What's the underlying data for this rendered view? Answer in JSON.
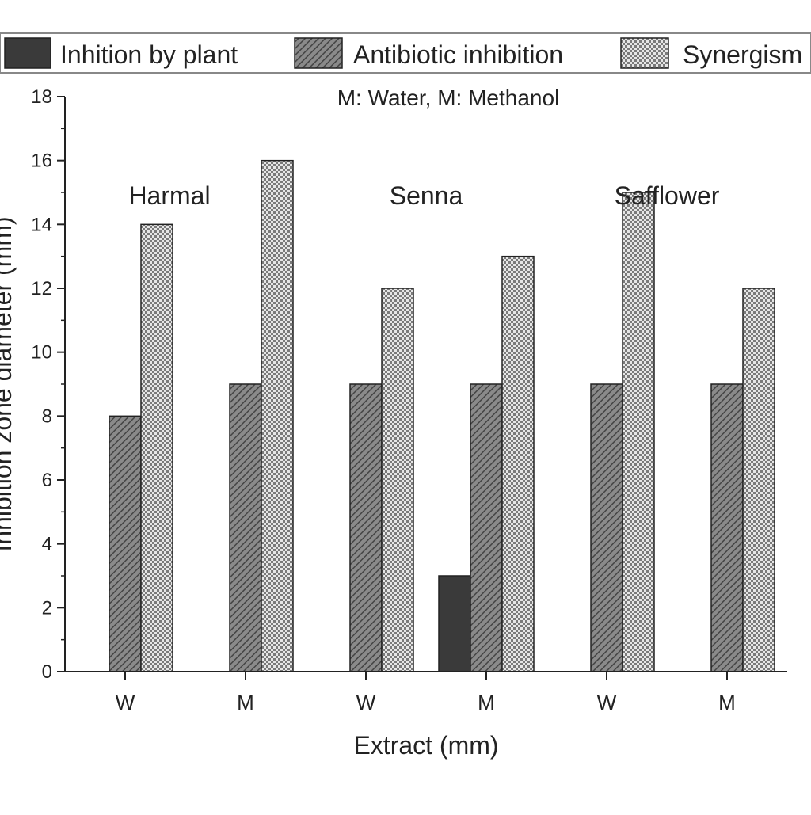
{
  "chart_data": {
    "type": "bar",
    "annotation": "M: Water, M: Methanol",
    "xlabel": "Extract (mm)",
    "ylabel": "Inhibition zone diameter (mm)",
    "ylim": [
      0,
      18
    ],
    "yticks": [
      0,
      2,
      4,
      6,
      8,
      10,
      12,
      14,
      16,
      18
    ],
    "categories": [
      "W",
      "M",
      "W",
      "M",
      "W",
      "M"
    ],
    "groups": [
      {
        "label": "Harmal",
        "categories": [
          0,
          1
        ]
      },
      {
        "label": "Senna",
        "categories": [
          2,
          3
        ]
      },
      {
        "label": "Safflower",
        "categories": [
          4,
          5
        ]
      }
    ],
    "series": [
      {
        "name": "Inhition by plant",
        "values": [
          0,
          0,
          0,
          3,
          0,
          0
        ],
        "pattern": "solid",
        "color": "#3a3a3a"
      },
      {
        "name": "Antibiotic inhibition",
        "values": [
          8,
          9,
          9,
          9,
          9,
          9
        ],
        "pattern": "diagonal",
        "color": "#6a6a6a"
      },
      {
        "name": "Synergism",
        "values": [
          14,
          16,
          12,
          13,
          15,
          12
        ],
        "pattern": "checker",
        "color": "#bdbdbd"
      }
    ],
    "legend_position": "top",
    "grid": false
  }
}
